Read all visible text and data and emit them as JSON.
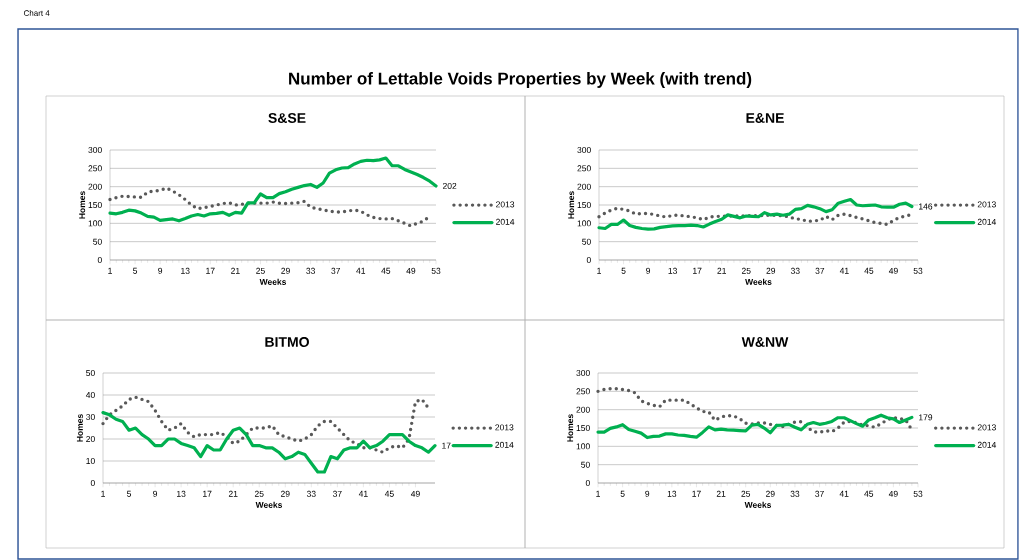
{
  "chart_data": [
    {
      "type": "line",
      "title": "S&SE",
      "xlabel": "Weeks",
      "ylabel": "Homes",
      "annotations": [
        "Chart 4",
        "Number of Lettable Voids Properties by Week (with trend)"
      ],
      "legend": "right",
      "grid": "y",
      "x": [
        1,
        2,
        3,
        4,
        5,
        6,
        7,
        8,
        9,
        10,
        11,
        12,
        13,
        14,
        15,
        16,
        17,
        18,
        19,
        20,
        21,
        22,
        23,
        24,
        25,
        26,
        27,
        28,
        29,
        30,
        31,
        32,
        33,
        34,
        35,
        36,
        37,
        38,
        39,
        40,
        41,
        42,
        43,
        44,
        45,
        46,
        47,
        48,
        49,
        50,
        51,
        52,
        53
      ],
      "xlim": [
        1,
        53
      ],
      "xticks": [
        1,
        5,
        9,
        13,
        17,
        21,
        25,
        29,
        33,
        37,
        41,
        45,
        49,
        53
      ],
      "ylim": [
        0,
        300
      ],
      "yticks": [
        0,
        50,
        100,
        150,
        200,
        250,
        300
      ],
      "series": [
        {
          "name": "2013",
          "color": "#595959",
          "line_style": "dotted",
          "values": [
            165,
            170,
            174,
            173,
            172,
            171,
            185,
            188,
            190,
            196,
            188,
            178,
            165,
            150,
            140,
            143,
            146,
            150,
            154,
            156,
            150,
            152,
            155,
            155,
            155,
            155,
            158,
            155,
            154,
            155,
            156,
            160,
            144,
            140,
            137,
            133,
            131,
            131,
            134,
            136,
            133,
            123,
            116,
            113,
            112,
            113,
            107,
            100,
            93,
            100,
            106,
            119,
            null
          ]
        },
        {
          "name": "2014",
          "color": "#00b050",
          "line_style": "solid",
          "values": [
            128,
            126,
            130,
            136,
            134,
            128,
            119,
            117,
            108,
            110,
            112,
            107,
            113,
            120,
            124,
            120,
            126,
            127,
            130,
            122,
            130,
            128,
            156,
            156,
            180,
            170,
            170,
            181,
            186,
            193,
            198,
            203,
            206,
            198,
            210,
            237,
            246,
            251,
            252,
            262,
            269,
            272,
            271,
            273,
            278,
            257,
            257,
            247,
            240,
            233,
            225,
            215,
            202
          ],
          "value_labels": [
            null,
            null,
            null,
            null,
            null,
            null,
            null,
            null,
            null,
            null,
            null,
            null,
            null,
            null,
            null,
            null,
            null,
            null,
            null,
            null,
            null,
            null,
            null,
            null,
            null,
            null,
            null,
            null,
            null,
            null,
            null,
            null,
            null,
            null,
            null,
            null,
            null,
            null,
            null,
            null,
            null,
            null,
            null,
            null,
            null,
            null,
            null,
            null,
            null,
            null,
            null,
            null,
            "202"
          ]
        }
      ]
    },
    {
      "type": "line",
      "title": "E&NE",
      "xlabel": "Weeks",
      "ylabel": "Homes",
      "legend": "right",
      "grid": "y",
      "x": [
        1,
        2,
        3,
        4,
        5,
        6,
        7,
        8,
        9,
        10,
        11,
        12,
        13,
        14,
        15,
        16,
        17,
        18,
        19,
        20,
        21,
        22,
        23,
        24,
        25,
        26,
        27,
        28,
        29,
        30,
        31,
        32,
        33,
        34,
        35,
        36,
        37,
        38,
        39,
        40,
        41,
        42,
        43,
        44,
        45,
        46,
        47,
        48,
        49,
        50,
        51,
        52
      ],
      "xlim": [
        1,
        53
      ],
      "xticks": [
        1,
        5,
        9,
        13,
        17,
        21,
        25,
        29,
        33,
        37,
        41,
        45,
        49,
        53
      ],
      "ylim": [
        0,
        300
      ],
      "yticks": [
        0,
        50,
        100,
        150,
        200,
        250,
        300
      ],
      "series": [
        {
          "name": "2013",
          "color": "#595959",
          "line_style": "dotted",
          "values": [
            118,
            128,
            136,
            141,
            138,
            134,
            125,
            127,
            127,
            124,
            120,
            117,
            122,
            122,
            120,
            118,
            115,
            110,
            117,
            119,
            119,
            120,
            120,
            120,
            121,
            121,
            121,
            122,
            122,
            122,
            120,
            118,
            112,
            111,
            105,
            107,
            108,
            119,
            110,
            122,
            125,
            121,
            116,
            112,
            107,
            102,
            100,
            97,
            108,
            116,
            120,
            124
          ]
        },
        {
          "name": "2014",
          "color": "#00b050",
          "line_style": "solid",
          "values": [
            88,
            86,
            97,
            97,
            109,
            94,
            89,
            86,
            84,
            85,
            89,
            91,
            93,
            94,
            94,
            95,
            94,
            90,
            98,
            105,
            111,
            123,
            119,
            115,
            120,
            119,
            118,
            129,
            123,
            125,
            122,
            125,
            138,
            140,
            149,
            145,
            140,
            132,
            137,
            155,
            160,
            165,
            150,
            148,
            149,
            150,
            145,
            144,
            144,
            152,
            155,
            146
          ],
          "value_labels": [
            null,
            null,
            null,
            null,
            null,
            null,
            null,
            null,
            null,
            null,
            null,
            null,
            null,
            null,
            null,
            null,
            null,
            null,
            null,
            null,
            null,
            null,
            null,
            null,
            null,
            null,
            null,
            null,
            null,
            null,
            null,
            null,
            null,
            null,
            null,
            null,
            null,
            null,
            null,
            null,
            null,
            null,
            null,
            null,
            null,
            null,
            null,
            null,
            null,
            null,
            null,
            "146"
          ]
        }
      ]
    },
    {
      "type": "line",
      "title": "BITMO",
      "xlabel": "Weeks",
      "ylabel": "Homes",
      "legend": "right",
      "grid": "y",
      "x": [
        1,
        2,
        3,
        4,
        5,
        6,
        7,
        8,
        9,
        10,
        11,
        12,
        13,
        14,
        15,
        16,
        17,
        18,
        19,
        20,
        21,
        22,
        23,
        24,
        25,
        26,
        27,
        28,
        29,
        30,
        31,
        32,
        33,
        34,
        35,
        36,
        37,
        38,
        39,
        40,
        41,
        42,
        43,
        44,
        45,
        46,
        47,
        48,
        49,
        50,
        51,
        52
      ],
      "xlim": [
        1,
        52
      ],
      "xticks": [
        1,
        5,
        9,
        13,
        17,
        21,
        25,
        29,
        33,
        37,
        41,
        45,
        49
      ],
      "ylim": [
        0,
        50
      ],
      "yticks": [
        0,
        10,
        20,
        30,
        40,
        50
      ],
      "series": [
        {
          "name": "2013",
          "color": "#595959",
          "line_style": "dotted",
          "values": [
            27,
            31,
            33,
            35,
            38,
            39,
            38,
            37,
            33,
            28,
            24,
            25,
            27,
            23,
            21,
            22,
            22,
            22,
            23,
            21,
            18,
            19,
            22,
            25,
            25,
            25,
            26,
            22,
            21,
            20,
            19,
            20,
            22,
            26,
            28,
            28,
            25,
            22,
            19,
            18,
            16,
            16,
            15,
            14,
            16,
            17,
            16,
            20,
            37,
            38,
            34,
            null
          ]
        },
        {
          "name": "2014",
          "color": "#00b050",
          "line_style": "solid",
          "values": [
            32,
            31,
            29,
            28,
            24,
            25,
            22,
            20,
            17,
            17,
            20,
            20,
            18,
            17,
            16,
            12,
            17,
            15,
            15,
            20,
            24,
            25,
            22,
            17,
            17,
            16,
            16,
            14,
            11,
            12,
            14,
            13,
            9,
            5,
            5,
            12,
            11,
            15,
            16,
            16,
            19,
            16,
            17,
            19,
            22,
            22,
            22,
            19,
            17,
            16,
            14,
            17
          ],
          "value_labels": [
            null,
            null,
            null,
            null,
            null,
            null,
            null,
            null,
            null,
            null,
            null,
            null,
            null,
            null,
            null,
            null,
            null,
            null,
            null,
            null,
            null,
            null,
            null,
            null,
            null,
            null,
            null,
            null,
            null,
            null,
            null,
            null,
            null,
            null,
            null,
            null,
            null,
            null,
            null,
            null,
            null,
            null,
            null,
            null,
            null,
            null,
            null,
            null,
            null,
            null,
            null,
            "17"
          ]
        }
      ]
    },
    {
      "type": "line",
      "title": "W&NW",
      "xlabel": "Weeks",
      "ylabel": "Homes",
      "legend": "right",
      "grid": "y",
      "x": [
        1,
        2,
        3,
        4,
        5,
        6,
        7,
        8,
        9,
        10,
        11,
        12,
        13,
        14,
        15,
        16,
        17,
        18,
        19,
        20,
        21,
        22,
        23,
        24,
        25,
        26,
        27,
        28,
        29,
        30,
        31,
        32,
        33,
        34,
        35,
        36,
        37,
        38,
        39,
        40,
        41,
        42,
        43,
        44,
        45,
        46,
        47,
        48,
        49,
        50,
        51,
        52
      ],
      "xlim": [
        1,
        53
      ],
      "xticks": [
        1,
        5,
        9,
        13,
        17,
        21,
        25,
        29,
        33,
        37,
        41,
        45,
        49,
        53
      ],
      "ylim": [
        0,
        300
      ],
      "yticks": [
        0,
        50,
        100,
        150,
        200,
        250,
        300
      ],
      "series": [
        {
          "name": "2013",
          "color": "#595959",
          "line_style": "dotted",
          "values": [
            250,
            255,
            257,
            257,
            255,
            252,
            246,
            224,
            217,
            212,
            208,
            226,
            226,
            226,
            226,
            216,
            205,
            195,
            194,
            171,
            180,
            184,
            183,
            176,
            163,
            161,
            164,
            164,
            160,
            157,
            154,
            160,
            166,
            167,
            152,
            140,
            138,
            143,
            140,
            150,
            166,
            168,
            164,
            158,
            156,
            152,
            162,
            172,
            178,
            176,
            172,
            145
          ]
        },
        {
          "name": "2014",
          "color": "#00b050",
          "line_style": "solid",
          "values": [
            139,
            139,
            149,
            153,
            159,
            146,
            141,
            136,
            124,
            127,
            128,
            134,
            134,
            131,
            130,
            127,
            125,
            138,
            153,
            145,
            147,
            145,
            144,
            143,
            142,
            158,
            160,
            150,
            137,
            157,
            158,
            160,
            152,
            145,
            160,
            165,
            160,
            163,
            168,
            178,
            178,
            170,
            162,
            155,
            172,
            178,
            185,
            178,
            175,
            165,
            172,
            179
          ],
          "value_labels": [
            null,
            null,
            null,
            null,
            null,
            null,
            null,
            null,
            null,
            null,
            null,
            null,
            null,
            null,
            null,
            null,
            null,
            null,
            null,
            null,
            null,
            null,
            null,
            null,
            null,
            null,
            null,
            null,
            null,
            null,
            null,
            null,
            null,
            null,
            null,
            null,
            null,
            null,
            null,
            null,
            null,
            null,
            null,
            null,
            null,
            null,
            null,
            null,
            null,
            null,
            null,
            "179"
          ]
        }
      ]
    }
  ]
}
